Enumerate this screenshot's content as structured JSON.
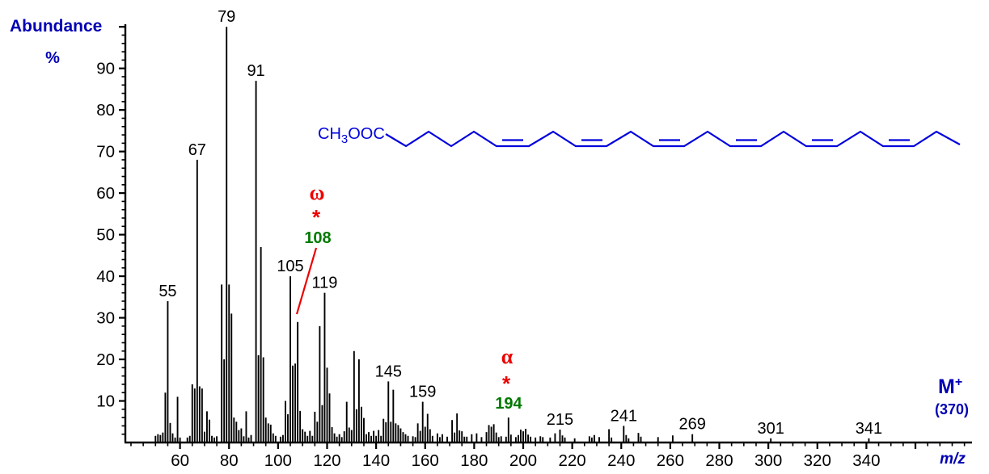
{
  "axis_labels": {
    "y_title": "Abundance",
    "y_unit": "%",
    "x_title": "m/z"
  },
  "molecular_ion": {
    "symbol": "M",
    "charge": "+",
    "mass_label": "(370)"
  },
  "structure": {
    "ester_label_parts": {
      "ch": "CH",
      "sub": "3",
      "ooc": "OOC"
    }
  },
  "fragments": [
    {
      "symbol": "ω",
      "marker": "*",
      "mass": "108"
    },
    {
      "symbol": "α",
      "marker": "*",
      "mass": "194"
    }
  ],
  "colors": {
    "peak": "#000000",
    "axis": "#000000",
    "blue_text": "#0000b4",
    "structure_blue": "#0000dd",
    "fragment_red": "#ee0000",
    "fragment_green": "#007a00"
  },
  "chart_data": {
    "type": "bar",
    "kind": "mass-spectrum",
    "xlabel": "m/z",
    "ylabel": "Abundance %",
    "xlim": [
      37.7,
      383
    ],
    "ylim": [
      0,
      100
    ],
    "x_ticks_major": [
      60,
      80,
      100,
      120,
      140,
      160,
      180,
      200,
      220,
      240,
      260,
      280,
      300,
      320,
      340,
      360
    ],
    "x_tick_labels": [
      "60",
      "80",
      "100",
      "120",
      "140",
      "160",
      "180",
      "200",
      "220",
      "240",
      "260",
      "280",
      "300",
      "320",
      "340"
    ],
    "x_tick_minor_step": 5,
    "y_ticks_major": [
      10,
      20,
      30,
      40,
      50,
      60,
      70,
      80,
      90,
      100
    ],
    "y_tick_labels": [
      "10",
      "20",
      "30",
      "40",
      "50",
      "60",
      "70",
      "80",
      "90"
    ],
    "y_tick_minor_step": 2,
    "labeled_peaks": [
      55,
      67,
      79,
      91,
      105,
      119,
      145,
      159,
      215,
      241,
      269,
      301,
      341
    ],
    "base_peak": 79,
    "peaks": [
      [
        50,
        1.6
      ],
      [
        51,
        2
      ],
      [
        52,
        1.8
      ],
      [
        53,
        2.4
      ],
      [
        54,
        12
      ],
      [
        55,
        34
      ],
      [
        56,
        4.7
      ],
      [
        57,
        2.2
      ],
      [
        58,
        1.2
      ],
      [
        59,
        11
      ],
      [
        60,
        1.2
      ],
      [
        63,
        1.2
      ],
      [
        64,
        1.6
      ],
      [
        65,
        14
      ],
      [
        66,
        13
      ],
      [
        67,
        68
      ],
      [
        68,
        13.5
      ],
      [
        69,
        13
      ],
      [
        70,
        2.6
      ],
      [
        71,
        7.5
      ],
      [
        72,
        5.5
      ],
      [
        73,
        1.6
      ],
      [
        74,
        1.2
      ],
      [
        75,
        1.5
      ],
      [
        77,
        38
      ],
      [
        78,
        20
      ],
      [
        79,
        100
      ],
      [
        80,
        38
      ],
      [
        81,
        31
      ],
      [
        82,
        6
      ],
      [
        83,
        5
      ],
      [
        84,
        3
      ],
      [
        85,
        3.4
      ],
      [
        86,
        1.5
      ],
      [
        87,
        7.5
      ],
      [
        88,
        1.2
      ],
      [
        89,
        1.8
      ],
      [
        91,
        87
      ],
      [
        92,
        21
      ],
      [
        93,
        47
      ],
      [
        94,
        20.5
      ],
      [
        95,
        6
      ],
      [
        96,
        4.6
      ],
      [
        97,
        4.3
      ],
      [
        98,
        2.2
      ],
      [
        99,
        1.6
      ],
      [
        101,
        1.4
      ],
      [
        102,
        1.8
      ],
      [
        103,
        10
      ],
      [
        104,
        6.8
      ],
      [
        105,
        40
      ],
      [
        106,
        18.5
      ],
      [
        107,
        19
      ],
      [
        108,
        29
      ],
      [
        109,
        7.6
      ],
      [
        110,
        3.2
      ],
      [
        111,
        2.6
      ],
      [
        112,
        1.6
      ],
      [
        113,
        2.8
      ],
      [
        114,
        1.6
      ],
      [
        115,
        7.4
      ],
      [
        116,
        5
      ],
      [
        117,
        28
      ],
      [
        118,
        9
      ],
      [
        119,
        36
      ],
      [
        120,
        18
      ],
      [
        121,
        11.8
      ],
      [
        122,
        3.7
      ],
      [
        123,
        2.2
      ],
      [
        124,
        1.4
      ],
      [
        125,
        2
      ],
      [
        126,
        1.3
      ],
      [
        127,
        2.7
      ],
      [
        128,
        9.8
      ],
      [
        129,
        3.6
      ],
      [
        130,
        3
      ],
      [
        131,
        22
      ],
      [
        132,
        8
      ],
      [
        133,
        20
      ],
      [
        134,
        8.6
      ],
      [
        135,
        5.9
      ],
      [
        136,
        2
      ],
      [
        137,
        2.5
      ],
      [
        138,
        1.6
      ],
      [
        139,
        2.8
      ],
      [
        140,
        1.6
      ],
      [
        141,
        3
      ],
      [
        142,
        1.6
      ],
      [
        143,
        5.7
      ],
      [
        144,
        4.9
      ],
      [
        145,
        14.7
      ],
      [
        146,
        5
      ],
      [
        147,
        12.7
      ],
      [
        148,
        4.6
      ],
      [
        149,
        4.2
      ],
      [
        150,
        3.4
      ],
      [
        151,
        2.5
      ],
      [
        152,
        2
      ],
      [
        153,
        1.6
      ],
      [
        155,
        1.5
      ],
      [
        156,
        1.3
      ],
      [
        157,
        4.6
      ],
      [
        158,
        2.8
      ],
      [
        159,
        9.8
      ],
      [
        160,
        3.8
      ],
      [
        161,
        6.9
      ],
      [
        162,
        3.2
      ],
      [
        163,
        1.6
      ],
      [
        165,
        2.2
      ],
      [
        166,
        1.3
      ],
      [
        167,
        2
      ],
      [
        169,
        1.4
      ],
      [
        171,
        5.4
      ],
      [
        172,
        2.4
      ],
      [
        173,
        7
      ],
      [
        174,
        2.9
      ],
      [
        175,
        2.7
      ],
      [
        176,
        1.4
      ],
      [
        177,
        1.4
      ],
      [
        179,
        2
      ],
      [
        181,
        2.2
      ],
      [
        183,
        1.3
      ],
      [
        185,
        2.5
      ],
      [
        186,
        4.2
      ],
      [
        187,
        3.8
      ],
      [
        188,
        4.4
      ],
      [
        189,
        2.4
      ],
      [
        190,
        1.3
      ],
      [
        191,
        1.5
      ],
      [
        193,
        1.4
      ],
      [
        194,
        6
      ],
      [
        195,
        1.9
      ],
      [
        197,
        1.3
      ],
      [
        198,
        1.8
      ],
      [
        199,
        3.1
      ],
      [
        200,
        2.7
      ],
      [
        201,
        3.3
      ],
      [
        202,
        1.9
      ],
      [
        203,
        1.4
      ],
      [
        205,
        1.2
      ],
      [
        207,
        1.5
      ],
      [
        208,
        1.3
      ],
      [
        211,
        1.2
      ],
      [
        213,
        2.2
      ],
      [
        215,
        3.1
      ],
      [
        216,
        1.7
      ],
      [
        217,
        1.2
      ],
      [
        221,
        1
      ],
      [
        227,
        1.5
      ],
      [
        228,
        1.2
      ],
      [
        229,
        1.8
      ],
      [
        231,
        1.3
      ],
      [
        235,
        3.2
      ],
      [
        236,
        1.2
      ],
      [
        241,
        4
      ],
      [
        242,
        1.8
      ],
      [
        243,
        1
      ],
      [
        247,
        2.3
      ],
      [
        248,
        1.4
      ],
      [
        255,
        1.3
      ],
      [
        261,
        1.7
      ],
      [
        269,
        2
      ],
      [
        301,
        1
      ],
      [
        341,
        1
      ]
    ],
    "annotations": [
      {
        "group": "omega",
        "texts": [
          "ω",
          "*",
          "108"
        ],
        "points_to_mz": 108
      },
      {
        "group": "alpha",
        "texts": [
          "α",
          "*",
          "194"
        ],
        "points_to_mz": 194
      },
      {
        "group": "molecular-ion",
        "texts": [
          "M",
          "+",
          "(370)"
        ]
      }
    ],
    "legend": null,
    "grid": false
  }
}
